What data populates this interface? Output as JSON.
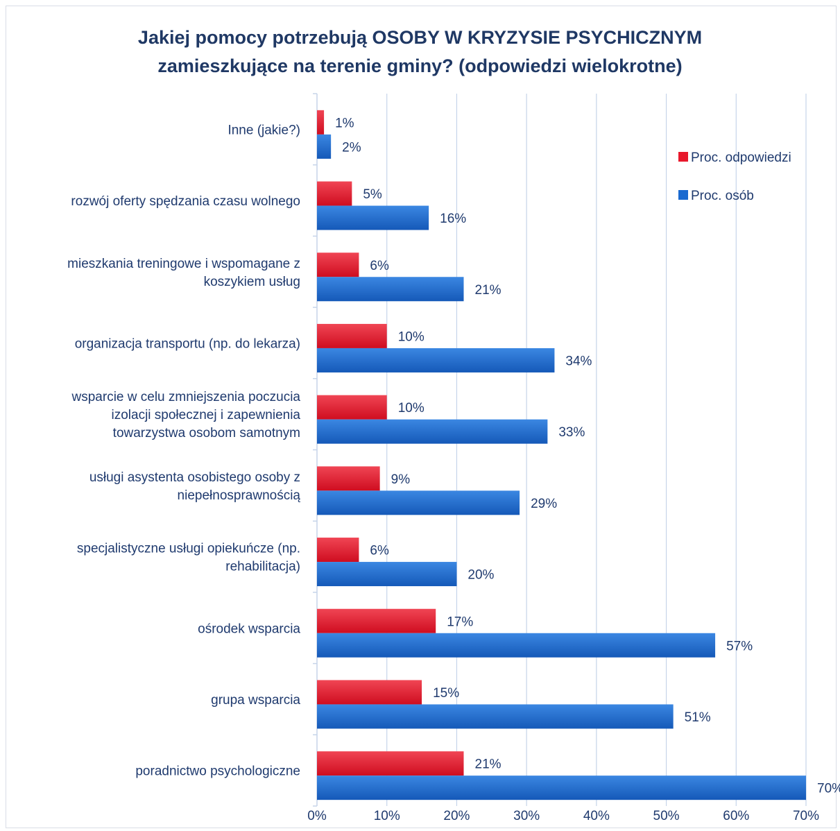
{
  "chart_data": {
    "type": "bar",
    "orientation": "horizontal",
    "title_lines": [
      "Jakiej pomocy potrzebują OSOBY W KRYZYSIE PSYCHICZNYM",
      "zamieszkujące na terenie gminy? (odpowiedzi wielokrotne)"
    ],
    "categories": [
      {
        "label_lines": [
          "Inne (jakie?)"
        ]
      },
      {
        "label_lines": [
          "rozwój oferty spędzania czasu wolnego"
        ]
      },
      {
        "label_lines": [
          "mieszkania treningowe i wspomagane z",
          "koszykiem usług"
        ]
      },
      {
        "label_lines": [
          "organizacja transportu (np. do lekarza)"
        ]
      },
      {
        "label_lines": [
          "wsparcie w celu zmniejszenia poczucia",
          "izolacji społecznej i zapewnienia",
          "towarzystwa osobom samotnym"
        ]
      },
      {
        "label_lines": [
          "usługi asystenta osobistego osoby z",
          "niepełnosprawnością"
        ]
      },
      {
        "label_lines": [
          "specjalistyczne usługi opiekuńcze (np.",
          "rehabilitacja)"
        ]
      },
      {
        "label_lines": [
          "ośrodek wsparcia"
        ]
      },
      {
        "label_lines": [
          "grupa wsparcia"
        ]
      },
      {
        "label_lines": [
          "poradnictwo psychologiczne"
        ]
      }
    ],
    "series": [
      {
        "name": "Proc. odpowiedzi",
        "color": "#e8192c",
        "values": [
          1,
          5,
          6,
          10,
          10,
          9,
          6,
          17,
          15,
          21
        ],
        "data_labels": [
          "1%",
          "5%",
          "6%",
          "10%",
          "10%",
          "9%",
          "6%",
          "17%",
          "15%",
          "21%"
        ]
      },
      {
        "name": "Proc. osób",
        "color": "#1a6ad0",
        "values": [
          2,
          16,
          21,
          34,
          33,
          29,
          20,
          57,
          51,
          70
        ],
        "data_labels": [
          "2%",
          "16%",
          "21%",
          "34%",
          "33%",
          "29%",
          "20%",
          "57%",
          "51%",
          "70%"
        ]
      }
    ],
    "xlim": [
      0,
      70
    ],
    "x_ticks": [
      0,
      10,
      20,
      30,
      40,
      50,
      60,
      70
    ],
    "x_tick_labels": [
      "0%",
      "10%",
      "20%",
      "30%",
      "40%",
      "50%",
      "60%",
      "70%"
    ],
    "grid": "vertical",
    "legend_position": "right"
  }
}
